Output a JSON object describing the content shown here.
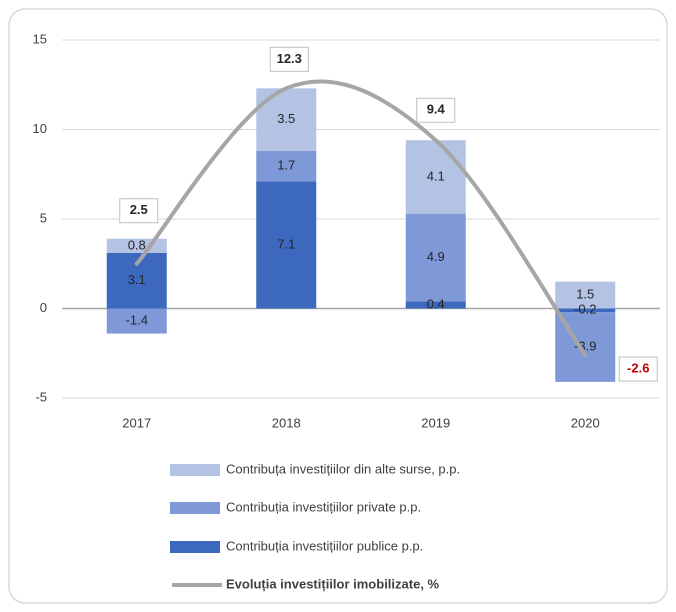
{
  "chart_data": {
    "type": "stacked-bar-line",
    "categories": [
      "2017",
      "2018",
      "2019",
      "2020"
    ],
    "series": [
      {
        "name": "Contribuția investițiilor publice p.p.",
        "color": "#3c69bd",
        "values": [
          3.1,
          7.1,
          0.4,
          -0.2
        ]
      },
      {
        "name": "Contribuția investițiilor private p.p.",
        "color": "#7f98d7",
        "values": [
          -1.4,
          1.7,
          4.9,
          -3.9
        ]
      },
      {
        "name": "Contribuța investițiilor din alte surse, p.p.",
        "color": "#b4c2e4",
        "values": [
          0.8,
          3.5,
          4.1,
          1.5
        ]
      }
    ],
    "line": {
      "name": "Evoluția investițiilor imobilizate, %",
      "color": "#a6a6a6",
      "values": [
        2.5,
        12.3,
        9.4,
        -2.6
      ],
      "negative_label_color": "#c00000"
    },
    "ylim": [
      -5,
      15
    ],
    "yticks": [
      -5,
      0,
      5,
      10,
      15
    ],
    "grid": true
  }
}
